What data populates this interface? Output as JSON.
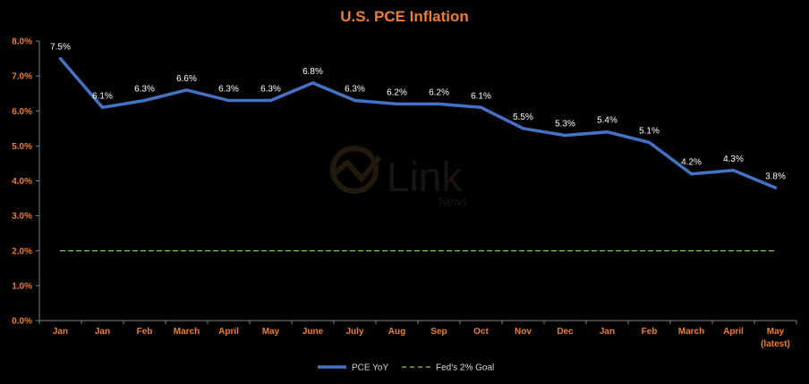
{
  "chart_data": {
    "type": "line",
    "title": "U.S. PCE Inflation",
    "categories": [
      [
        "Jan"
      ],
      [
        "Jan"
      ],
      [
        "Feb"
      ],
      [
        "March"
      ],
      [
        "April"
      ],
      [
        "May"
      ],
      [
        "June"
      ],
      [
        "July"
      ],
      [
        "Aug"
      ],
      [
        "Sep"
      ],
      [
        "Oct"
      ],
      [
        "Nov"
      ],
      [
        "Dec"
      ],
      [
        "Jan"
      ],
      [
        "Feb"
      ],
      [
        "March"
      ],
      [
        "April"
      ],
      [
        "May",
        "(latest)"
      ]
    ],
    "series": [
      {
        "name": "PCE YoY",
        "color": "#4472c4",
        "style": "solid",
        "values": [
          7.5,
          6.1,
          6.3,
          6.6,
          6.3,
          6.3,
          6.8,
          6.3,
          6.2,
          6.2,
          6.1,
          5.5,
          5.3,
          5.4,
          5.1,
          4.2,
          4.3,
          3.8
        ],
        "labels": [
          "7.5%",
          "6.1%",
          "6.3%",
          "6.6%",
          "6.3%",
          "6.3%",
          "6.8%",
          "6.3%",
          "6.2%",
          "6.2%",
          "6.1%",
          "5.5%",
          "5.3%",
          "5.4%",
          "5.1%",
          "4.2%",
          "4.3%",
          "3.8%"
        ]
      },
      {
        "name": "Fed's 2% Goal",
        "color": "#70ad47",
        "style": "dashed",
        "values": [
          2,
          2,
          2,
          2,
          2,
          2,
          2,
          2,
          2,
          2,
          2,
          2,
          2,
          2,
          2,
          2,
          2,
          2
        ]
      }
    ],
    "ylim": [
      0,
      8
    ],
    "yticks": [
      "0.0%",
      "1.0%",
      "2.0%",
      "3.0%",
      "4.0%",
      "5.0%",
      "6.0%",
      "7.0%",
      "8.0%"
    ],
    "grid": false,
    "legend": "bottom-center",
    "title_color": "#ed7d31",
    "tick_color": "#ed7d31"
  },
  "watermark": {
    "main": "Link",
    "sub": "News"
  }
}
